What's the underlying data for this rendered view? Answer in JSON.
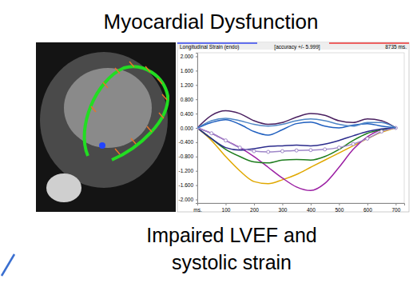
{
  "slide": {
    "title": "Myocardial Dysfunction",
    "caption": [
      "Impaired LVEF and",
      "systolic strain"
    ]
  },
  "chart_data": {
    "type": "line",
    "title": "Longitudinal Strain (endo)",
    "annotations": [
      "[accuracy +/- 5.999]",
      "8735 ms."
    ],
    "x": [
      0,
      50,
      100,
      150,
      200,
      250,
      300,
      350,
      400,
      450,
      500,
      550,
      600,
      650,
      700
    ],
    "xlim": [
      0,
      730
    ],
    "xticks": [
      {
        "value": 0,
        "label": "ms."
      },
      100,
      200,
      300,
      400,
      500,
      600,
      700
    ],
    "ylim": [
      -2.1,
      2.1
    ],
    "yticks": [
      {
        "value": 2,
        "label": "2.000"
      },
      {
        "value": 1.6,
        "label": "1.600"
      },
      {
        "value": 1.2,
        "label": "1.200"
      },
      {
        "value": 0.8,
        "label": "0.800"
      },
      {
        "value": 0.4,
        "label": "0.400"
      },
      {
        "value": 0,
        "label": "0.000"
      },
      {
        "value": -0.4,
        "label": "-0.400"
      },
      {
        "value": -0.8,
        "label": "-0.800"
      },
      {
        "value": -1.2,
        "label": "-1.200"
      },
      {
        "value": -1.6,
        "label": "-1.600"
      },
      {
        "value": -2,
        "label": "-2.000"
      }
    ],
    "grid": false,
    "series": [
      {
        "color": "#e0a800",
        "values": [
          0,
          -0.35,
          -0.8,
          -1.2,
          -1.5,
          -1.56,
          -1.45,
          -1.3,
          -1.1,
          -0.9,
          -0.7,
          -0.5,
          -0.3,
          -0.12,
          0
        ]
      },
      {
        "color": "#9b1fa3",
        "values": [
          0,
          -0.15,
          -0.35,
          -0.55,
          -0.8,
          -1.1,
          -1.4,
          -1.65,
          -1.75,
          -1.55,
          -1.1,
          -0.6,
          -0.25,
          -0.05,
          0
        ]
      },
      {
        "color": "#1e7d1e",
        "values": [
          0,
          -0.3,
          -0.6,
          -0.8,
          -0.95,
          -0.98,
          -0.9,
          -0.88,
          -0.9,
          -0.8,
          -0.6,
          -0.35,
          -0.15,
          -0.05,
          0
        ]
      },
      {
        "color": "#2b2b8c",
        "values": [
          0,
          -0.3,
          -0.55,
          -0.62,
          -0.58,
          -0.52,
          -0.5,
          -0.48,
          -0.5,
          -0.45,
          -0.35,
          -0.22,
          -0.1,
          -0.03,
          0
        ]
      },
      {
        "color": "#9e86c8",
        "marker": "circle",
        "values": [
          0,
          -0.15,
          -0.35,
          -0.55,
          -0.65,
          -0.67,
          -0.65,
          -0.63,
          -0.62,
          -0.6,
          -0.55,
          -0.45,
          -0.3,
          -0.1,
          0
        ]
      },
      {
        "color": "#1f5fbf",
        "values": [
          0,
          0.15,
          0.23,
          0.1,
          -0.1,
          -0.2,
          -0.05,
          0.12,
          0.16,
          0.05,
          0,
          0.08,
          0.12,
          0.05,
          0
        ]
      },
      {
        "color": "#4a2060",
        "values": [
          0,
          0.35,
          0.48,
          0.4,
          0.2,
          0.1,
          0.15,
          0.3,
          0.4,
          0.35,
          0.2,
          0.15,
          0.25,
          0.2,
          0
        ]
      },
      {
        "color": "#4f86c6",
        "values": [
          0,
          0.2,
          0.27,
          0.2,
          0.1,
          0.05,
          0.1,
          0.2,
          0.25,
          0.2,
          0.1,
          0.05,
          0.15,
          0.15,
          0
        ]
      }
    ]
  }
}
